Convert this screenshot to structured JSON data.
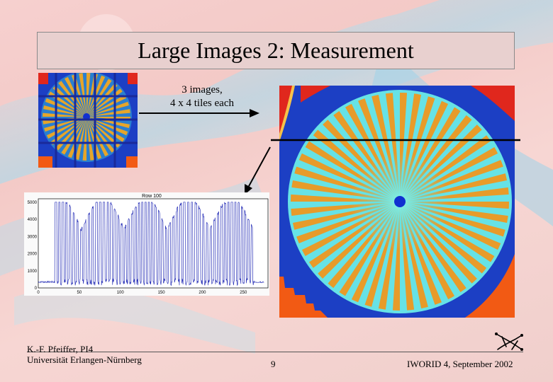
{
  "slide": {
    "title": "Large Images 2: Measurement",
    "caption_line1": "3  images,",
    "caption_line2": "4 x 4 tiles each"
  },
  "plot": {
    "title": "Row 100",
    "y_ticks": [
      "5000",
      "4000",
      "3000",
      "2000",
      "1000",
      "0"
    ],
    "x_ticks": [
      "0",
      "50",
      "100",
      "150",
      "200",
      "250"
    ]
  },
  "footer": {
    "author": "K.-F. Pfeiffer, PI4",
    "institution": "Universität Erlangen-Nürnberg",
    "page_number": "9",
    "event": "IWORID 4, September 2002"
  },
  "chart_data": {
    "type": "line",
    "title": "Row 100",
    "xlabel": "",
    "ylabel": "",
    "xlim": [
      0,
      280
    ],
    "ylim": [
      0,
      5200
    ],
    "grid": false
  },
  "colors": {
    "title_bg": "#e8d0cf",
    "image_blue": "#1c3fc4",
    "image_red": "#e0271d",
    "image_orange": "#f25a14",
    "trace": "#2b33b8"
  }
}
